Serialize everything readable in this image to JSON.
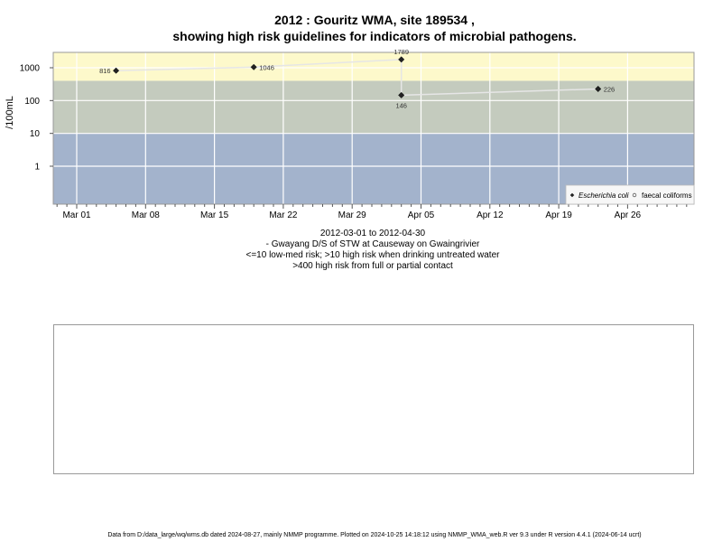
{
  "chart_data": {
    "type": "scatter",
    "title": [
      "2012 : Gouritz WMA, site 189534 ,",
      "showing high risk guidelines for indicators of microbial pathogens."
    ],
    "ylabel": "/100mL",
    "y_scale": "log",
    "y_ticks": [
      "1",
      "10",
      "100",
      "1000"
    ],
    "x_ticks": [
      "Mar 01",
      "Mar 08",
      "Mar 15",
      "Mar 22",
      "Mar 29",
      "Apr 05",
      "Apr 12",
      "Apr 19",
      "Apr 26"
    ],
    "xlim": [
      "2012-02-28",
      "2012-05-03"
    ],
    "risk_bands": [
      {
        "label": "<=10 low-med risk",
        "from": 0,
        "to": 10,
        "color": "#a3b3cc"
      },
      {
        "label": ">10 high risk when drinking untreated water",
        "from": 10,
        "to": 400,
        "color": "#c4cbbe"
      },
      {
        "label": ">400 high risk from full or partial contact",
        "from": 400,
        "to": 3300,
        "color": "#fdf9cb"
      }
    ],
    "series": [
      {
        "name": "Escherichia coli",
        "marker": "filled-diamond",
        "color": "#222222",
        "points": [
          {
            "x": "2012-03-05",
            "y": 816,
            "label": "816"
          },
          {
            "x": "2012-03-19",
            "y": 1046,
            "label": "1046"
          },
          {
            "x": "2012-04-03",
            "y": 1789,
            "label": "1789"
          },
          {
            "x": "2012-04-03",
            "y": 146,
            "label": "146"
          },
          {
            "x": "2012-04-23",
            "y": 226,
            "label": "226"
          }
        ]
      },
      {
        "name": "faecal coliforms",
        "marker": "open-circle",
        "color": "#555555",
        "points": []
      }
    ],
    "legend": [
      "Escherichia coli",
      "faecal coliforms"
    ],
    "legend_position": "bottom-right",
    "grid": true
  },
  "captions": [
    "2012-03-01 to 2012-04-30",
    "- Gwayang D/S of STW at Causeway on Gwaingrivier",
    "<=10 low-med risk; >10 high risk when drinking untreated water",
    ">400 high risk from full or partial contact"
  ],
  "footer": "Data from D:/data_large/wq/wms.db dated 2024-08-27, mainly NMMP programme. Plotted on 2024-10-25 14:18:12 using NMMP_WMA_web.R ver 9.3 under R version 4.4.1 (2024-06-14 ucrt)"
}
